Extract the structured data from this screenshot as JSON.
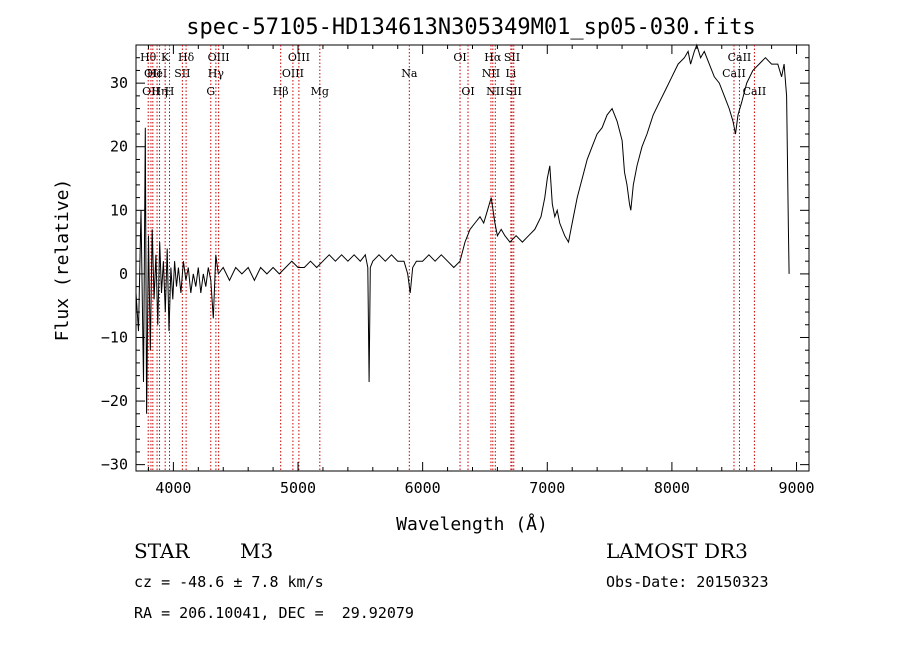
{
  "chart_data": {
    "type": "line",
    "title": "spec-57105-HD134613N305349M01_sp05-030.fits",
    "xlabel": "Wavelength (Å)",
    "ylabel": "Flux (relative)",
    "xlim": [
      3700,
      9100
    ],
    "ylim": [
      -31,
      36
    ],
    "xticks": [
      4000,
      5000,
      6000,
      7000,
      8000,
      9000
    ],
    "yticks": [
      -30,
      -20,
      -10,
      0,
      10,
      20,
      30
    ],
    "grid": false,
    "series": [
      {
        "points": [
          [
            3700,
            -3
          ],
          [
            3720,
            -9
          ],
          [
            3740,
            10
          ],
          [
            3760,
            -17
          ],
          [
            3775,
            23
          ],
          [
            3785,
            -22
          ],
          [
            3800,
            6
          ],
          [
            3815,
            -12
          ],
          [
            3830,
            7
          ],
          [
            3845,
            -4
          ],
          [
            3860,
            3
          ],
          [
            3875,
            -8
          ],
          [
            3890,
            5
          ],
          [
            3905,
            -3
          ],
          [
            3920,
            2
          ],
          [
            3935,
            -6
          ],
          [
            3950,
            4
          ],
          [
            3965,
            -9
          ],
          [
            3980,
            1
          ],
          [
            3995,
            -4
          ],
          [
            4010,
            2
          ],
          [
            4025,
            -2
          ],
          [
            4040,
            1
          ],
          [
            4060,
            -3
          ],
          [
            4080,
            2
          ],
          [
            4100,
            -1
          ],
          [
            4120,
            1
          ],
          [
            4140,
            -3
          ],
          [
            4160,
            0
          ],
          [
            4180,
            -2
          ],
          [
            4200,
            1
          ],
          [
            4220,
            -3
          ],
          [
            4240,
            0
          ],
          [
            4260,
            -2
          ],
          [
            4280,
            1
          ],
          [
            4300,
            -1
          ],
          [
            4320,
            -7
          ],
          [
            4340,
            3
          ],
          [
            4360,
            0
          ],
          [
            4400,
            1
          ],
          [
            4450,
            -1
          ],
          [
            4500,
            1
          ],
          [
            4550,
            0
          ],
          [
            4600,
            1
          ],
          [
            4650,
            -1
          ],
          [
            4700,
            1
          ],
          [
            4750,
            0
          ],
          [
            4800,
            1
          ],
          [
            4850,
            0
          ],
          [
            4900,
            1
          ],
          [
            4950,
            2
          ],
          [
            5000,
            1
          ],
          [
            5050,
            1
          ],
          [
            5100,
            2
          ],
          [
            5150,
            1
          ],
          [
            5200,
            2
          ],
          [
            5250,
            3
          ],
          [
            5300,
            2
          ],
          [
            5350,
            3
          ],
          [
            5400,
            2
          ],
          [
            5450,
            3
          ],
          [
            5500,
            2
          ],
          [
            5540,
            3
          ],
          [
            5560,
            1
          ],
          [
            5570,
            -17
          ],
          [
            5580,
            1
          ],
          [
            5600,
            2
          ],
          [
            5650,
            3
          ],
          [
            5700,
            2
          ],
          [
            5750,
            3
          ],
          [
            5800,
            2
          ],
          [
            5850,
            2
          ],
          [
            5880,
            0
          ],
          [
            5900,
            -3
          ],
          [
            5920,
            1
          ],
          [
            5950,
            2
          ],
          [
            6000,
            2
          ],
          [
            6050,
            3
          ],
          [
            6100,
            2
          ],
          [
            6150,
            3
          ],
          [
            6200,
            2
          ],
          [
            6250,
            1
          ],
          [
            6300,
            2
          ],
          [
            6340,
            5
          ],
          [
            6380,
            7
          ],
          [
            6420,
            8
          ],
          [
            6460,
            9
          ],
          [
            6490,
            8
          ],
          [
            6520,
            10
          ],
          [
            6550,
            12
          ],
          [
            6580,
            8
          ],
          [
            6600,
            6
          ],
          [
            6630,
            7
          ],
          [
            6660,
            6
          ],
          [
            6700,
            5
          ],
          [
            6750,
            6
          ],
          [
            6800,
            5
          ],
          [
            6850,
            6
          ],
          [
            6900,
            7
          ],
          [
            6950,
            9
          ],
          [
            6980,
            12
          ],
          [
            7000,
            15
          ],
          [
            7020,
            17
          ],
          [
            7040,
            11
          ],
          [
            7060,
            9
          ],
          [
            7080,
            10
          ],
          [
            7100,
            8
          ],
          [
            7140,
            6
          ],
          [
            7170,
            5
          ],
          [
            7200,
            8
          ],
          [
            7240,
            12
          ],
          [
            7280,
            15
          ],
          [
            7320,
            18
          ],
          [
            7360,
            20
          ],
          [
            7400,
            22
          ],
          [
            7440,
            23
          ],
          [
            7480,
            25
          ],
          [
            7520,
            26
          ],
          [
            7560,
            24
          ],
          [
            7600,
            21
          ],
          [
            7620,
            16
          ],
          [
            7640,
            14
          ],
          [
            7660,
            11
          ],
          [
            7670,
            10
          ],
          [
            7690,
            14
          ],
          [
            7720,
            17
          ],
          [
            7760,
            20
          ],
          [
            7800,
            22
          ],
          [
            7850,
            25
          ],
          [
            7900,
            27
          ],
          [
            7950,
            29
          ],
          [
            8000,
            31
          ],
          [
            8050,
            33
          ],
          [
            8100,
            34
          ],
          [
            8130,
            35
          ],
          [
            8150,
            33
          ],
          [
            8180,
            35
          ],
          [
            8200,
            36
          ],
          [
            8230,
            34
          ],
          [
            8260,
            35
          ],
          [
            8300,
            33
          ],
          [
            8340,
            31
          ],
          [
            8380,
            30
          ],
          [
            8420,
            28
          ],
          [
            8460,
            26
          ],
          [
            8490,
            24
          ],
          [
            8510,
            22
          ],
          [
            8530,
            25
          ],
          [
            8560,
            27
          ],
          [
            8600,
            30
          ],
          [
            8650,
            32
          ],
          [
            8700,
            33
          ],
          [
            8750,
            34
          ],
          [
            8800,
            33
          ],
          [
            8850,
            33
          ],
          [
            8880,
            31
          ],
          [
            8900,
            33
          ],
          [
            8920,
            28
          ],
          [
            8935,
            7
          ],
          [
            8940,
            0
          ]
        ]
      }
    ],
    "lines": [
      {
        "wave": 3798,
        "label": "Hθ",
        "row": 1
      },
      {
        "wave": 3820,
        "label": "OII",
        "row": 3
      },
      {
        "wave": 3835,
        "label": "OII",
        "row": 2
      },
      {
        "wave": 3869,
        "label": "HeI",
        "row": 2
      },
      {
        "wave": 3889,
        "label": "Hη",
        "row": 3
      },
      {
        "wave": 3934,
        "label": "K",
        "row": 1
      },
      {
        "wave": 3969,
        "label": "H",
        "row": 3
      },
      {
        "wave": 4072,
        "label": "SII",
        "row": 2
      },
      {
        "wave": 4102,
        "label": "Hδ",
        "row": 1
      },
      {
        "wave": 4300,
        "label": "G",
        "row": 3
      },
      {
        "wave": 4341,
        "label": "Hγ",
        "row": 2
      },
      {
        "wave": 4363,
        "label": "OIII",
        "row": 1
      },
      {
        "wave": 4861,
        "label": "Hβ",
        "row": 3
      },
      {
        "wave": 4959,
        "label": "OIII",
        "row": 2
      },
      {
        "wave": 5007,
        "label": "OIII",
        "row": 1
      },
      {
        "wave": 5175,
        "label": "Mg",
        "row": 3
      },
      {
        "wave": 5893,
        "label": "Na",
        "row": 2
      },
      {
        "wave": 6300,
        "label": "OI",
        "row": 1
      },
      {
        "wave": 6364,
        "label": "OI",
        "row": 3
      },
      {
        "wave": 6548,
        "label": "NII",
        "row": 2
      },
      {
        "wave": 6563,
        "label": "Hα",
        "row": 1
      },
      {
        "wave": 6583,
        "label": "NII",
        "row": 3
      },
      {
        "wave": 6708,
        "label": "Li",
        "row": 2
      },
      {
        "wave": 6717,
        "label": "SII",
        "row": 1
      },
      {
        "wave": 6731,
        "label": "SII",
        "row": 3
      },
      {
        "wave": 8498,
        "label": "CaII",
        "row": 2
      },
      {
        "wave": 8542,
        "label": "CaII",
        "row": 1
      },
      {
        "wave": 8662,
        "label": "CaII",
        "row": 3
      }
    ]
  },
  "info": {
    "class_label": "STAR",
    "subclass": "M3",
    "survey": "LAMOST DR3",
    "cz": "cz = -48.6 ± 7.8 km/s",
    "obs_date": "Obs-Date: 20150323",
    "coords": "RA = 206.10041, DEC =  29.92079"
  },
  "colors": {
    "spectrum": "#000000",
    "line_markers": "#cc0000",
    "axes": "#000000"
  }
}
